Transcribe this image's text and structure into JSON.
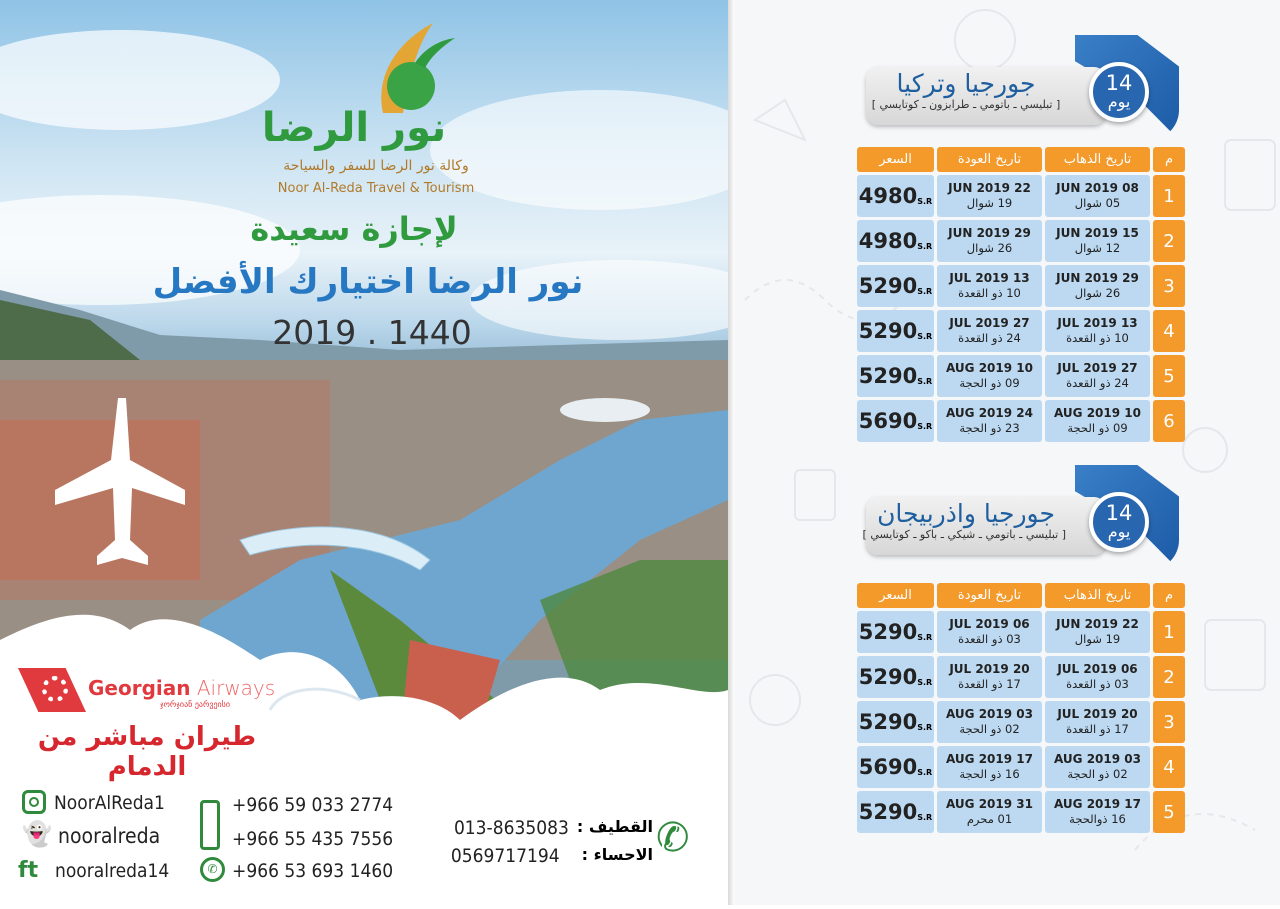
{
  "brand": {
    "name_ar": "نور الرضا",
    "subtitle_ar": "وكالة نور الرضا للسفر والسياحة",
    "name_en": "Noor Al-Reda Travel & Tourism"
  },
  "headline": {
    "line1": "لإجازة سعيدة",
    "line2": "نور الرضا اختيارك الأفضل",
    "years": "2019 . 1440"
  },
  "airline": {
    "name_bold": "Georgian",
    "name_light": "Airways",
    "georgian": "ჯორჯიან ეარვეისი",
    "direct_flight": "طيران مباشر من الدمام",
    "brand_color": "#e0393e"
  },
  "social": {
    "instagram": "NoorAlReda1",
    "snapchat": "nooralreda",
    "facebook_twitter": "nooralreda14"
  },
  "phones": [
    "+966 59 033 2774",
    "+966 55 435 7556",
    "+966 53 693 1460"
  ],
  "landlines": [
    {
      "label": "القطيف :",
      "number": "013-8635083"
    },
    {
      "label": "الاحساء :",
      "number": "0569717194"
    }
  ],
  "colors": {
    "accent_orange": "#f39a2b",
    "accent_blue": "#2966b0",
    "cell_blue": "#bcd9f1",
    "brand_green": "#2f9a3e"
  },
  "packages": [
    {
      "title": "جورجيا وتركيا",
      "cities": "[ تبليسي ـ باتومي ـ  طرابزون ـ كوتايسي ]",
      "days": "14",
      "days_label": "يوم",
      "headers": {
        "num": "م",
        "departure": "تاريخ الذهاب",
        "return": "تاريخ العودة",
        "price": "السعر"
      },
      "rows": [
        {
          "num": "1",
          "dep": "08  JUN 2019",
          "dep_h": "05 شوال",
          "ret": "22  JUN 2019",
          "ret_h": "19 شوال",
          "price": "4980",
          "cur": "S.R"
        },
        {
          "num": "2",
          "dep": "15  JUN 2019",
          "dep_h": "12 شوال",
          "ret": "29  JUN 2019",
          "ret_h": "26 شوال",
          "price": "4980",
          "cur": "S.R"
        },
        {
          "num": "3",
          "dep": "29  JUN 2019",
          "dep_h": "26 شوال",
          "ret": "13  JUL 2019",
          "ret_h": "10 ذو القعدة",
          "price": "5290",
          "cur": "S.R"
        },
        {
          "num": "4",
          "dep": "13  JUL 2019",
          "dep_h": "10 ذو القعدة",
          "ret": "27  JUL 2019",
          "ret_h": "24 ذو القعدة",
          "price": "5290",
          "cur": "S.R"
        },
        {
          "num": "5",
          "dep": "27  JUL 2019",
          "dep_h": "24 ذو القعدة",
          "ret": "10  AUG 2019",
          "ret_h": "09 ذو الحجة",
          "price": "5290",
          "cur": "S.R"
        },
        {
          "num": "6",
          "dep": "10  AUG 2019",
          "dep_h": "09 ذو الحجة",
          "ret": "24 AUG 2019",
          "ret_h": "23 ذو الحجة",
          "price": "5690",
          "cur": "S.R"
        }
      ]
    },
    {
      "title": "جورجيا واذربيجان",
      "cities": "[ تبليسي ـ باتومي ـ  شيكي ـ باكو ـ كوتايسي ]",
      "days": "14",
      "days_label": "يوم",
      "headers": {
        "num": "م",
        "departure": "تاريخ الذهاب",
        "return": "تاريخ العودة",
        "price": "السعر"
      },
      "rows": [
        {
          "num": "1",
          "dep": "22  JUN 2019",
          "dep_h": "19 شوال",
          "ret": "06  JUL 2019",
          "ret_h": "03 ذو القعدة",
          "price": "5290",
          "cur": "S.R"
        },
        {
          "num": "2",
          "dep": "06  JUL 2019",
          "dep_h": "03 ذو القعدة",
          "ret": "20  JUL 2019",
          "ret_h": "17 ذو القعدة",
          "price": "5290",
          "cur": "S.R"
        },
        {
          "num": "3",
          "dep": "20  JUL 2019",
          "dep_h": "17 ذو القعدة",
          "ret": "03  AUG 2019",
          "ret_h": "02 ذو الحجة",
          "price": "5290",
          "cur": "S.R"
        },
        {
          "num": "4",
          "dep": "03  AUG 2019",
          "dep_h": "02 ذو الحجة",
          "ret": "17  AUG 2019",
          "ret_h": "16 ذو الحجة",
          "price": "5690",
          "cur": "S.R"
        },
        {
          "num": "5",
          "dep": "17  AUG 2019",
          "dep_h": "16 ذوالحجة",
          "ret": "31  AUG 2019",
          "ret_h": "01 محرم",
          "price": "5290",
          "cur": "S.R"
        }
      ]
    }
  ]
}
